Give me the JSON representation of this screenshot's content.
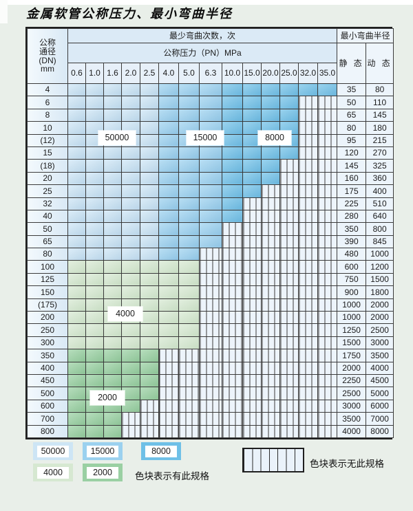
{
  "page": {
    "title": "金属软管公称压力、最小弯曲半径"
  },
  "table": {
    "header": {
      "dn_lines": [
        "公称",
        "通径",
        "(DN)",
        "mm"
      ],
      "cycles_label": "最少弯曲次数，次",
      "pressure_label": "公称压力（PN）MPa",
      "radius_label": "最小弯曲半径",
      "static_label": "静 态",
      "dynamic_label": "动 态",
      "pressures": [
        "0.6",
        "1.0",
        "1.6",
        "2.0",
        "2.5",
        "4.0",
        "5.0",
        "6.3",
        "10.0",
        "15.0",
        "20.0",
        "25.0",
        "32.0",
        "35.0"
      ]
    },
    "region_labels": [
      "50000",
      "15000",
      "8000",
      "4000",
      "2000"
    ],
    "rows": [
      {
        "dn": "4",
        "cycles": [
          50000,
          50000,
          50000,
          50000,
          50000,
          15000,
          15000,
          15000,
          8000,
          8000,
          8000,
          8000,
          8000,
          8000
        ],
        "static": "35",
        "dynamic": "80"
      },
      {
        "dn": "6",
        "cycles": [
          50000,
          50000,
          50000,
          50000,
          50000,
          15000,
          15000,
          15000,
          8000,
          8000,
          8000,
          8000,
          null,
          null
        ],
        "static": "50",
        "dynamic": "110"
      },
      {
        "dn": "8",
        "cycles": [
          50000,
          50000,
          50000,
          50000,
          50000,
          15000,
          15000,
          15000,
          8000,
          8000,
          8000,
          8000,
          null,
          null
        ],
        "static": "65",
        "dynamic": "145"
      },
      {
        "dn": "10",
        "cycles": [
          50000,
          50000,
          50000,
          50000,
          50000,
          15000,
          15000,
          15000,
          8000,
          8000,
          8000,
          8000,
          null,
          null
        ],
        "static": "80",
        "dynamic": "180"
      },
      {
        "dn": "(12)",
        "cycles": [
          50000,
          50000,
          50000,
          50000,
          50000,
          15000,
          15000,
          15000,
          8000,
          8000,
          8000,
          8000,
          null,
          null
        ],
        "static": "95",
        "dynamic": "215"
      },
      {
        "dn": "15",
        "cycles": [
          50000,
          50000,
          50000,
          50000,
          50000,
          15000,
          15000,
          15000,
          8000,
          8000,
          8000,
          8000,
          null,
          null
        ],
        "static": "120",
        "dynamic": "270"
      },
      {
        "dn": "(18)",
        "cycles": [
          50000,
          50000,
          50000,
          50000,
          50000,
          15000,
          15000,
          15000,
          8000,
          8000,
          8000,
          null,
          null,
          null
        ],
        "static": "145",
        "dynamic": "325"
      },
      {
        "dn": "20",
        "cycles": [
          50000,
          50000,
          50000,
          50000,
          50000,
          15000,
          15000,
          15000,
          8000,
          8000,
          8000,
          null,
          null,
          null
        ],
        "static": "160",
        "dynamic": "360"
      },
      {
        "dn": "25",
        "cycles": [
          50000,
          50000,
          50000,
          50000,
          50000,
          15000,
          15000,
          15000,
          8000,
          8000,
          null,
          null,
          null,
          null
        ],
        "static": "175",
        "dynamic": "400"
      },
      {
        "dn": "32",
        "cycles": [
          50000,
          50000,
          50000,
          50000,
          50000,
          15000,
          15000,
          15000,
          8000,
          null,
          null,
          null,
          null,
          null
        ],
        "static": "225",
        "dynamic": "510"
      },
      {
        "dn": "40",
        "cycles": [
          50000,
          50000,
          50000,
          50000,
          50000,
          15000,
          15000,
          15000,
          8000,
          null,
          null,
          null,
          null,
          null
        ],
        "static": "280",
        "dynamic": "640"
      },
      {
        "dn": "50",
        "cycles": [
          50000,
          50000,
          50000,
          50000,
          50000,
          15000,
          15000,
          15000,
          null,
          null,
          null,
          null,
          null,
          null
        ],
        "static": "350",
        "dynamic": "800"
      },
      {
        "dn": "65",
        "cycles": [
          50000,
          50000,
          50000,
          50000,
          50000,
          15000,
          15000,
          15000,
          null,
          null,
          null,
          null,
          null,
          null
        ],
        "static": "390",
        "dynamic": "845"
      },
      {
        "dn": "80",
        "cycles": [
          50000,
          50000,
          50000,
          50000,
          50000,
          15000,
          15000,
          null,
          null,
          null,
          null,
          null,
          null,
          null
        ],
        "static": "480",
        "dynamic": "1000"
      },
      {
        "dn": "100",
        "cycles": [
          4000,
          4000,
          4000,
          4000,
          4000,
          4000,
          4000,
          null,
          null,
          null,
          null,
          null,
          null,
          null
        ],
        "static": "600",
        "dynamic": "1200"
      },
      {
        "dn": "125",
        "cycles": [
          4000,
          4000,
          4000,
          4000,
          4000,
          4000,
          4000,
          null,
          null,
          null,
          null,
          null,
          null,
          null
        ],
        "static": "750",
        "dynamic": "1500"
      },
      {
        "dn": "150",
        "cycles": [
          4000,
          4000,
          4000,
          4000,
          4000,
          4000,
          4000,
          null,
          null,
          null,
          null,
          null,
          null,
          null
        ],
        "static": "900",
        "dynamic": "1800"
      },
      {
        "dn": "(175)",
        "cycles": [
          4000,
          4000,
          4000,
          4000,
          4000,
          4000,
          4000,
          null,
          null,
          null,
          null,
          null,
          null,
          null
        ],
        "static": "1000",
        "dynamic": "2000"
      },
      {
        "dn": "200",
        "cycles": [
          4000,
          4000,
          4000,
          4000,
          4000,
          4000,
          4000,
          null,
          null,
          null,
          null,
          null,
          null,
          null
        ],
        "static": "1000",
        "dynamic": "2000"
      },
      {
        "dn": "250",
        "cycles": [
          4000,
          4000,
          4000,
          4000,
          4000,
          4000,
          4000,
          null,
          null,
          null,
          null,
          null,
          null,
          null
        ],
        "static": "1250",
        "dynamic": "2500"
      },
      {
        "dn": "300",
        "cycles": [
          4000,
          4000,
          4000,
          4000,
          4000,
          4000,
          4000,
          null,
          null,
          null,
          null,
          null,
          null,
          null
        ],
        "static": "1500",
        "dynamic": "3000"
      },
      {
        "dn": "350",
        "cycles": [
          2000,
          2000,
          2000,
          2000,
          2000,
          null,
          null,
          null,
          null,
          null,
          null,
          null,
          null,
          null
        ],
        "static": "1750",
        "dynamic": "3500"
      },
      {
        "dn": "400",
        "cycles": [
          2000,
          2000,
          2000,
          2000,
          2000,
          null,
          null,
          null,
          null,
          null,
          null,
          null,
          null,
          null
        ],
        "static": "2000",
        "dynamic": "4000"
      },
      {
        "dn": "450",
        "cycles": [
          2000,
          2000,
          2000,
          2000,
          2000,
          null,
          null,
          null,
          null,
          null,
          null,
          null,
          null,
          null
        ],
        "static": "2250",
        "dynamic": "4500"
      },
      {
        "dn": "500",
        "cycles": [
          2000,
          2000,
          2000,
          2000,
          2000,
          null,
          null,
          null,
          null,
          null,
          null,
          null,
          null,
          null
        ],
        "static": "2500",
        "dynamic": "5000"
      },
      {
        "dn": "600",
        "cycles": [
          2000,
          2000,
          2000,
          2000,
          null,
          null,
          null,
          null,
          null,
          null,
          null,
          null,
          null,
          null
        ],
        "static": "3000",
        "dynamic": "6000"
      },
      {
        "dn": "700",
        "cycles": [
          2000,
          2000,
          2000,
          null,
          null,
          null,
          null,
          null,
          null,
          null,
          null,
          null,
          null,
          null
        ],
        "static": "3500",
        "dynamic": "7000"
      },
      {
        "dn": "800",
        "cycles": [
          2000,
          2000,
          2000,
          null,
          null,
          null,
          null,
          null,
          null,
          null,
          null,
          null,
          null,
          null
        ],
        "static": "4000",
        "dynamic": "8000"
      }
    ]
  },
  "legend": {
    "items": [
      "50000",
      "15000",
      "8000",
      "4000",
      "2000"
    ],
    "has_text": "色块表示有此规格",
    "none_text": "色块表示无此规格"
  },
  "colors": {
    "cycle_50000": "#cde5f5",
    "cycle_15000": "#9bd1ef",
    "cycle_8000": "#6fc0e7",
    "cycle_4000": "#d6e8d1",
    "cycle_2000": "#9ad0a3",
    "no_spec_fill": "#edf4fb",
    "grid_line": "#3a3a3a",
    "header_fill": "#dbeaf6"
  }
}
